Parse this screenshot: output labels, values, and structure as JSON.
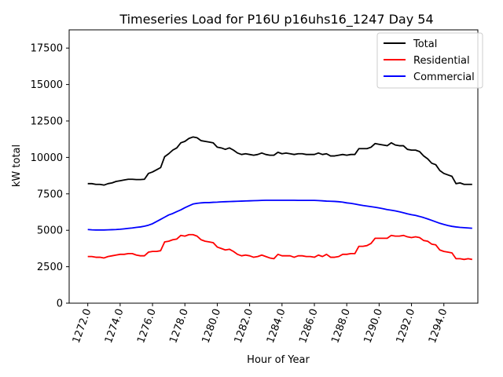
{
  "chart_data": {
    "type": "line",
    "title": "Timeseries Load for P16U p16uhs16_1247  Day 54",
    "xlabel": "Hour of Year",
    "ylabel": "kW total",
    "xlim": [
      1270.85,
      1296.1
    ],
    "ylim": [
      0,
      18750
    ],
    "x_ticks": [
      1272,
      1274,
      1276,
      1278,
      1280,
      1282,
      1284,
      1286,
      1288,
      1290,
      1292,
      1294
    ],
    "x_tick_labels": [
      "1272.0",
      "1274.0",
      "1276.0",
      "1278.0",
      "1280.0",
      "1282.0",
      "1284.0",
      "1286.0",
      "1288.0",
      "1290.0",
      "1292.0",
      "1294.0"
    ],
    "y_ticks": [
      0,
      2500,
      5000,
      7500,
      10000,
      12500,
      15000,
      17500
    ],
    "y_tick_labels": [
      "0",
      "2500",
      "5000",
      "7500",
      "10000",
      "12500",
      "15000",
      "17500"
    ],
    "grid": false,
    "legend_position": "upper-right",
    "x": [
      1272.0,
      1272.25,
      1272.5,
      1272.75,
      1273.0,
      1273.25,
      1273.5,
      1273.75,
      1274.0,
      1274.25,
      1274.5,
      1274.75,
      1275.0,
      1275.25,
      1275.5,
      1275.75,
      1276.0,
      1276.25,
      1276.5,
      1276.75,
      1277.0,
      1277.25,
      1277.5,
      1277.75,
      1278.0,
      1278.25,
      1278.5,
      1278.75,
      1279.0,
      1279.25,
      1279.5,
      1279.75,
      1280.0,
      1280.25,
      1280.5,
      1280.75,
      1281.0,
      1281.25,
      1281.5,
      1281.75,
      1282.0,
      1282.25,
      1282.5,
      1282.75,
      1283.0,
      1283.25,
      1283.5,
      1283.75,
      1284.0,
      1284.25,
      1284.5,
      1284.75,
      1285.0,
      1285.25,
      1285.5,
      1285.75,
      1286.0,
      1286.25,
      1286.5,
      1286.75,
      1287.0,
      1287.25,
      1287.5,
      1287.75,
      1288.0,
      1288.25,
      1288.5,
      1288.75,
      1289.0,
      1289.25,
      1289.5,
      1289.75,
      1290.0,
      1290.25,
      1290.5,
      1290.75,
      1291.0,
      1291.25,
      1291.5,
      1291.75,
      1292.0,
      1292.25,
      1292.5,
      1292.75,
      1293.0,
      1293.25,
      1293.5,
      1293.75,
      1294.0,
      1294.25,
      1294.5,
      1294.75,
      1295.0,
      1295.25,
      1295.5,
      1295.75
    ],
    "series": [
      {
        "name": "Total",
        "color": "#000000",
        "values": [
          8200,
          8200,
          8150,
          8150,
          8100,
          8200,
          8250,
          8350,
          8400,
          8450,
          8500,
          8500,
          8480,
          8480,
          8500,
          8900,
          9000,
          9150,
          9300,
          10050,
          10250,
          10500,
          10650,
          11000,
          11100,
          11300,
          11400,
          11350,
          11150,
          11100,
          11050,
          11000,
          10700,
          10650,
          10550,
          10650,
          10500,
          10300,
          10200,
          10250,
          10200,
          10150,
          10200,
          10300,
          10200,
          10150,
          10150,
          10350,
          10250,
          10300,
          10250,
          10200,
          10250,
          10250,
          10200,
          10200,
          10200,
          10300,
          10200,
          10250,
          10100,
          10100,
          10150,
          10200,
          10150,
          10200,
          10200,
          10600,
          10600,
          10600,
          10700,
          10950,
          10900,
          10850,
          10800,
          11000,
          10850,
          10800,
          10800,
          10550,
          10500,
          10500,
          10400,
          10100,
          9900,
          9600,
          9500,
          9100,
          8900,
          8800,
          8700,
          8200,
          8250,
          8150,
          8150,
          8150
        ]
      },
      {
        "name": "Residential",
        "color": "#ff0000",
        "values": [
          3200,
          3200,
          3150,
          3150,
          3100,
          3200,
          3250,
          3300,
          3350,
          3350,
          3400,
          3400,
          3300,
          3250,
          3250,
          3500,
          3550,
          3550,
          3600,
          4200,
          4250,
          4350,
          4400,
          4650,
          4600,
          4700,
          4700,
          4600,
          4350,
          4250,
          4200,
          4150,
          3850,
          3750,
          3650,
          3700,
          3550,
          3350,
          3250,
          3300,
          3250,
          3150,
          3200,
          3300,
          3200,
          3100,
          3050,
          3350,
          3250,
          3250,
          3250,
          3150,
          3250,
          3250,
          3200,
          3200,
          3150,
          3300,
          3200,
          3350,
          3150,
          3150,
          3200,
          3350,
          3350,
          3400,
          3400,
          3900,
          3900,
          3950,
          4100,
          4450,
          4450,
          4450,
          4450,
          4650,
          4600,
          4600,
          4650,
          4550,
          4500,
          4550,
          4500,
          4300,
          4250,
          4050,
          4000,
          3650,
          3550,
          3500,
          3450,
          3050,
          3050,
          3000,
          3050,
          3000
        ]
      },
      {
        "name": "Commercial",
        "color": "#0000ff",
        "values": [
          5050,
          5030,
          5020,
          5020,
          5020,
          5030,
          5040,
          5050,
          5070,
          5100,
          5130,
          5160,
          5200,
          5230,
          5280,
          5350,
          5450,
          5600,
          5750,
          5900,
          6050,
          6150,
          6280,
          6400,
          6550,
          6680,
          6800,
          6850,
          6880,
          6900,
          6900,
          6920,
          6930,
          6950,
          6960,
          6970,
          6980,
          6990,
          7000,
          7010,
          7020,
          7030,
          7040,
          7050,
          7060,
          7060,
          7060,
          7060,
          7060,
          7060,
          7060,
          7060,
          7050,
          7050,
          7050,
          7050,
          7050,
          7040,
          7020,
          7000,
          6990,
          6980,
          6960,
          6930,
          6880,
          6850,
          6800,
          6750,
          6700,
          6660,
          6620,
          6580,
          6530,
          6480,
          6420,
          6380,
          6330,
          6270,
          6200,
          6130,
          6070,
          6020,
          5950,
          5870,
          5780,
          5680,
          5580,
          5480,
          5400,
          5330,
          5270,
          5230,
          5200,
          5180,
          5160,
          5140
        ]
      }
    ]
  }
}
